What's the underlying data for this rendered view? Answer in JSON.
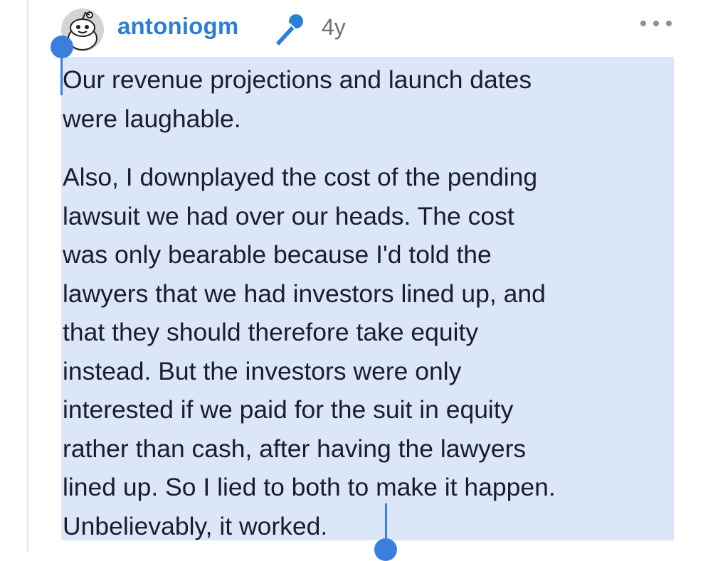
{
  "comment_header": {
    "username": "antoniogm",
    "age": "4y",
    "avatar_icon": "snoo-avatar-icon",
    "badge_icon": "microphone-icon",
    "more_icon": "more-horizontal-icon"
  },
  "comment_body": {
    "paragraph1": [
      "Our revenue projections and launch dates",
      "were laughable."
    ],
    "paragraph2": [
      "Also, I downplayed the cost of the pending",
      "lawsuit we had over our heads. The cost",
      "was only bearable because I'd told the",
      "lawyers that we had investors lined up, and",
      "that they should therefore take equity",
      "instead. But the investors were only",
      "interested if we paid for the suit in equity",
      "rather than cash, after having the lawyers",
      "lined up. So I lied to both to make it happen.",
      "Unbelievably, it worked."
    ]
  },
  "colors": {
    "username": "#2a7fd4",
    "selection": "#dbe6f8",
    "handle": "#3a7fe0",
    "meta": "#6e6e73"
  }
}
